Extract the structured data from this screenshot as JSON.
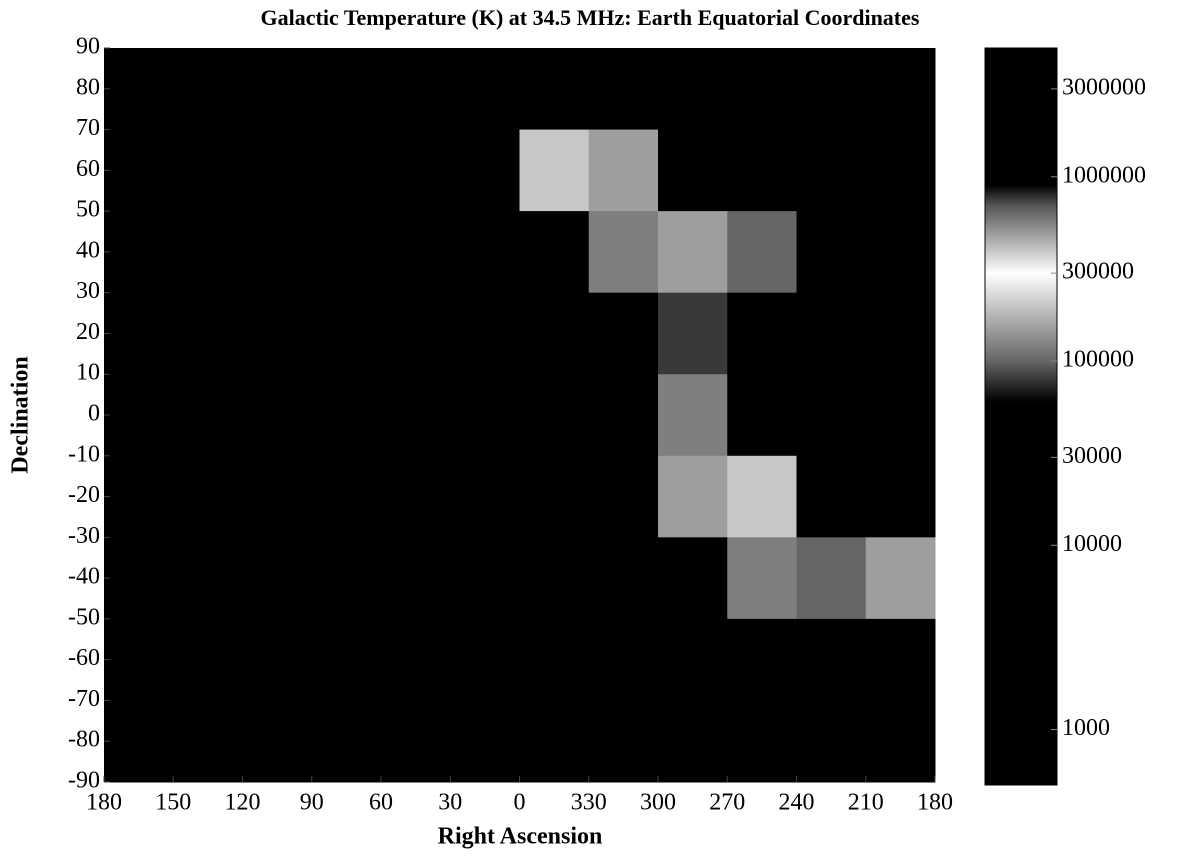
{
  "chart_data": {
    "type": "heatmap",
    "title": "Galactic Temperature (K) at 34.5 MHz: Earth Equatorial Coordinates",
    "x_label": "Right  Ascension",
    "y_label": "Declination",
    "xlim": [
      180,
      -180
    ],
    "ylim": [
      -90,
      90
    ],
    "xticks": [
      180,
      150,
      120,
      90,
      60,
      30,
      0,
      {
        "value": -30,
        "label": "330"
      },
      {
        "value": -60,
        "label": "300"
      },
      {
        "value": -90,
        "label": "270"
      },
      {
        "value": -120,
        "label": "240"
      },
      {
        "value": -150,
        "label": "210"
      },
      {
        "value": -180,
        "label": "180"
      }
    ],
    "yticks": [
      90,
      80,
      70,
      60,
      50,
      40,
      30,
      20,
      10,
      0,
      -10,
      -20,
      -30,
      -40,
      -50,
      -60,
      -70,
      -80,
      -90
    ],
    "x": [
      165,
      135,
      105,
      75,
      45,
      15,
      -15,
      -45,
      -75,
      -105,
      -135,
      -165
    ],
    "y": [
      80,
      60,
      40,
      20,
      0,
      -20,
      -40,
      -60,
      -80
    ],
    "z": [
      [
        20000,
        20000,
        20000,
        20000,
        20000,
        20000,
        30000,
        20000,
        20000,
        20000,
        20000,
        20000
      ],
      [
        20000,
        20000,
        20000,
        20000,
        20000,
        20000,
        200000,
        150000,
        60000,
        20000,
        20000,
        20000
      ],
      [
        20000,
        20000,
        20000,
        20000,
        20000,
        20000,
        40000,
        120000,
        150000,
        100000,
        20000,
        20000
      ],
      [
        20000,
        20000,
        20000,
        20000,
        20000,
        20000,
        20000,
        40000,
        80000,
        30000,
        20000,
        30000
      ],
      [
        20000,
        20000,
        20000,
        20000,
        20000,
        20000,
        20000,
        30000,
        120000,
        40000,
        20000,
        30000
      ],
      [
        20000,
        20000,
        20000,
        20000,
        20000,
        20000,
        20000,
        30000,
        150000,
        200000,
        60000,
        40000
      ],
      [
        20000,
        20000,
        20000,
        20000,
        20000,
        20000,
        20000,
        40000,
        60000,
        120000,
        100000,
        150000
      ],
      [
        20000,
        20000,
        20000,
        20000,
        20000,
        20000,
        20000,
        20000,
        20000,
        20000,
        20000,
        20000
      ],
      [
        20000,
        20000,
        20000,
        20000,
        20000,
        20000,
        20000,
        20000,
        20000,
        20000,
        20000,
        20000
      ]
    ],
    "clim": [
      500,
      5000000
    ],
    "color_scale": "log",
    "colormap": [
      {
        "value": 500,
        "color": "#000000"
      },
      {
        "value": 60000,
        "color": "#000000"
      },
      {
        "value": 100000,
        "color": "#666666"
      },
      {
        "value": 300000,
        "color": "#ffffff"
      },
      {
        "value": 700000,
        "color": "#555555"
      },
      {
        "value": 900000,
        "color": "#000000"
      },
      {
        "value": 5000000,
        "color": "#000000"
      }
    ],
    "cticks": [
      3000000,
      1000000,
      300000,
      100000,
      30000,
      10000,
      1000
    ]
  }
}
